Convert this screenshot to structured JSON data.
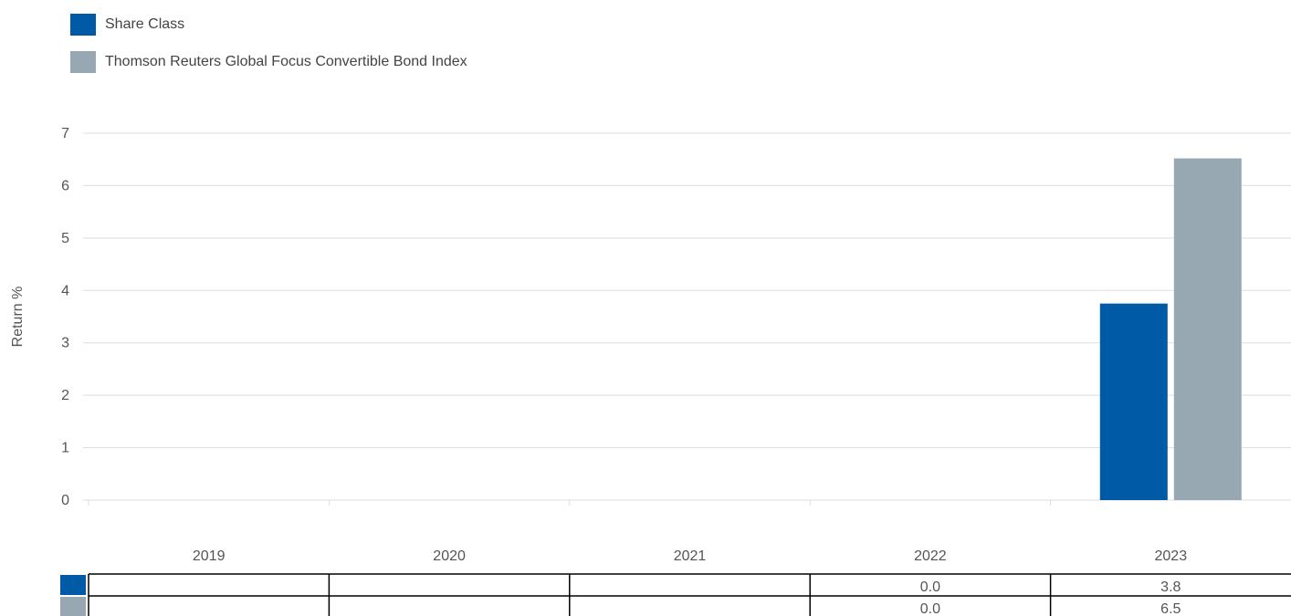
{
  "chart_data": {
    "type": "bar",
    "categories": [
      "2019",
      "2020",
      "2021",
      "2022",
      "2023"
    ],
    "series": [
      {
        "name": "Share Class",
        "values": [
          null,
          null,
          null,
          0.0,
          3.75
        ],
        "table": [
          "",
          "",
          "",
          "0.0",
          "3.8"
        ]
      },
      {
        "name": "Thomson Reuters Global Focus Convertible Bond Index",
        "values": [
          null,
          null,
          null,
          0.0,
          6.52
        ],
        "table": [
          "",
          "",
          "",
          "0.0",
          "6.5"
        ]
      }
    ],
    "title": "",
    "xlabel": "",
    "ylabel": "Return %",
    "ylim": [
      0,
      7
    ],
    "yticks": [
      "0",
      "1",
      "2",
      "3",
      "4",
      "5",
      "6",
      "7"
    ],
    "grid": true,
    "legend_placement": "top-left",
    "colors": {
      "share_class": "#005aa5",
      "index": "#98a8b3",
      "grid": "#dddddd",
      "table_border": "#000000"
    }
  }
}
